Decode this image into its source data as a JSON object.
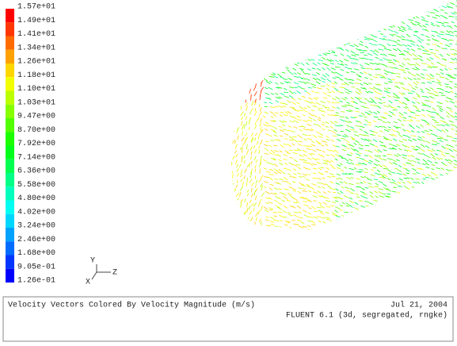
{
  "colorbar": {
    "labels": [
      "1.57e+01",
      "1.49e+01",
      "1.41e+01",
      "1.34e+01",
      "1.26e+01",
      "1.18e+01",
      "1.10e+01",
      "1.03e+01",
      "9.47e+00",
      "8.70e+00",
      "7.92e+00",
      "7.14e+00",
      "6.36e+00",
      "5.58e+00",
      "4.80e+00",
      "4.02e+00",
      "3.24e+00",
      "2.46e+00",
      "1.68e+00",
      "9.05e-01",
      "1.26e-01"
    ]
  },
  "axes": {
    "y": "Y",
    "z": "Z",
    "x": "X"
  },
  "footer": {
    "title": "Velocity Vectors Colored By Velocity Magnitude (m/s)",
    "date": "Jul 21, 2004",
    "software": "FLUENT 6.1 (3d, segregated, rngke)"
  }
}
